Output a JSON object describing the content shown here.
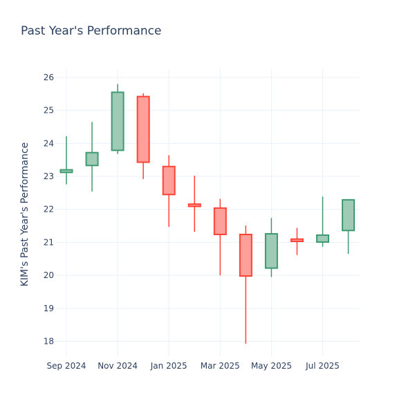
{
  "chart_data": {
    "type": "candlestick",
    "title": "Past Year's Performance",
    "xlabel": "",
    "ylabel": "KIM's Past Year's Performance",
    "ylim": [
      17.55,
      26.25
    ],
    "yticks": [
      18,
      19,
      20,
      21,
      22,
      23,
      24,
      25,
      26
    ],
    "x_ticks": [
      "Sep 2024",
      "Nov 2024",
      "Jan 2025",
      "Mar 2025",
      "May 2025",
      "Jul 2025"
    ],
    "increasing_color": "#3D9970",
    "increasing_fill": "#9ecab6",
    "decreasing_color": "#FF4136",
    "decreasing_fill": "#ff9f9a",
    "candles": [
      {
        "period": "Sep 2024",
        "open": 23.12,
        "high": 24.22,
        "low": 22.76,
        "close": 23.2
      },
      {
        "period": "Oct 2024",
        "open": 23.33,
        "high": 24.65,
        "low": 22.54,
        "close": 23.72
      },
      {
        "period": "Nov 2024",
        "open": 23.79,
        "high": 25.8,
        "low": 23.68,
        "close": 25.55
      },
      {
        "period": "Dec 2024",
        "open": 25.42,
        "high": 25.52,
        "low": 22.92,
        "close": 23.43
      },
      {
        "period": "Jan 2025",
        "open": 23.3,
        "high": 23.64,
        "low": 21.47,
        "close": 22.45
      },
      {
        "period": "Feb 2025",
        "open": 22.16,
        "high": 23.02,
        "low": 21.32,
        "close": 22.09
      },
      {
        "period": "Mar 2025",
        "open": 22.04,
        "high": 22.32,
        "low": 20.0,
        "close": 21.24
      },
      {
        "period": "Apr 2025",
        "open": 21.24,
        "high": 21.51,
        "low": 17.93,
        "close": 19.98
      },
      {
        "period": "May 2025",
        "open": 20.22,
        "high": 21.74,
        "low": 19.95,
        "close": 21.26
      },
      {
        "period": "Jun 2025",
        "open": 21.1,
        "high": 21.44,
        "low": 20.62,
        "close": 21.03
      },
      {
        "period": "Jul 2025",
        "open": 21.01,
        "high": 22.39,
        "low": 20.87,
        "close": 21.22
      },
      {
        "period": "Aug 2025",
        "open": 21.36,
        "high": 22.31,
        "low": 20.65,
        "close": 22.29
      }
    ]
  }
}
